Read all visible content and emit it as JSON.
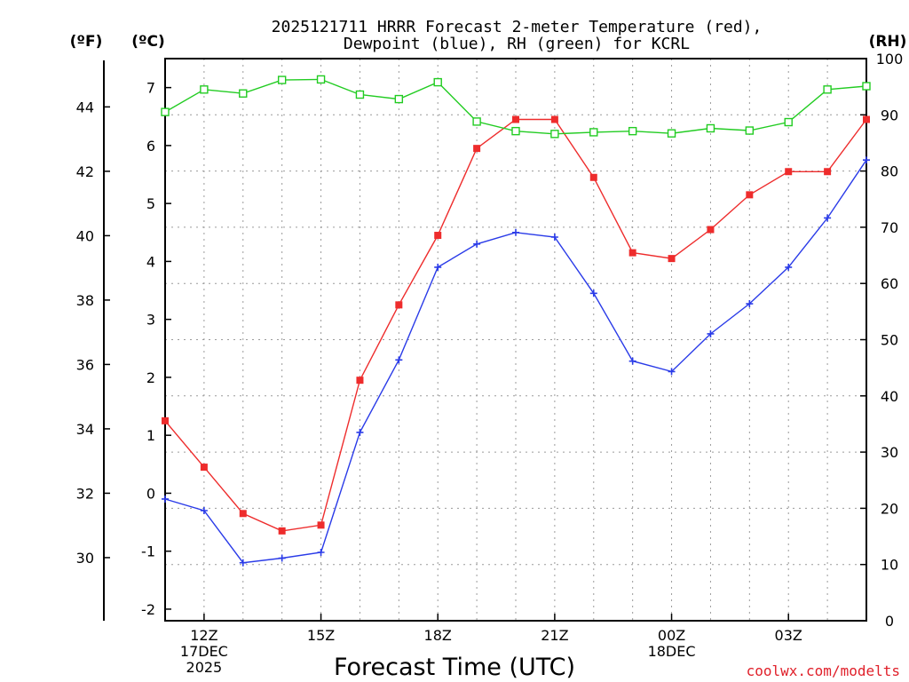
{
  "chart_data": {
    "type": "line",
    "title_lines": [
      "2025121711 HRRR Forecast 2-meter Temperature (red),",
      "Dewpoint (blue), RH (green) for KCRL"
    ],
    "xlabel": "Forecast Time (UTC)",
    "credit": "coolwx.com/modelts",
    "unit_labels": {
      "fahrenheit": "(ºF)",
      "celsius": "(ºC)",
      "rh": "(RH)"
    },
    "x_hours": [
      11,
      12,
      13,
      14,
      15,
      16,
      17,
      18,
      19,
      20,
      21,
      22,
      23,
      24,
      25,
      26,
      27,
      28,
      29
    ],
    "xlim": [
      11,
      29
    ],
    "x_ticks": [
      {
        "hour": 12,
        "lines": [
          "12Z",
          "17DEC",
          "2025"
        ]
      },
      {
        "hour": 15,
        "lines": [
          "15Z"
        ]
      },
      {
        "hour": 18,
        "lines": [
          "18Z"
        ]
      },
      {
        "hour": 21,
        "lines": [
          "21Z"
        ]
      },
      {
        "hour": 24,
        "lines": [
          "00Z",
          "18DEC"
        ]
      },
      {
        "hour": 27,
        "lines": [
          "03Z"
        ]
      }
    ],
    "celsius_axis": {
      "min": -2.2,
      "max": 7.5,
      "ticks": [
        "-2",
        "-1",
        "0",
        "1",
        "2",
        "3",
        "4",
        "5",
        "6",
        "7"
      ]
    },
    "fahrenheit_axis": {
      "ticks": [
        "30",
        "32",
        "34",
        "36",
        "38",
        "40",
        "42",
        "44"
      ]
    },
    "rh_axis": {
      "min": 0,
      "max": 100,
      "ticks": [
        "0",
        "10",
        "20",
        "30",
        "40",
        "50",
        "60",
        "70",
        "80",
        "90",
        "100"
      ]
    },
    "series": [
      {
        "name": "Temperature",
        "units": "C",
        "color": "#ee2c2c",
        "marker": "filled-square",
        "values": [
          1.25,
          0.45,
          -0.35,
          -0.65,
          -0.55,
          1.95,
          3.25,
          4.45,
          5.95,
          6.45,
          6.45,
          5.45,
          4.15,
          4.05,
          4.55,
          5.15,
          5.55,
          5.55,
          6.45
        ]
      },
      {
        "name": "Dewpoint",
        "units": "C",
        "color": "#2a3be8",
        "marker": "plus",
        "values": [
          -0.1,
          -0.3,
          -1.2,
          -1.12,
          -1.02,
          1.05,
          2.3,
          3.9,
          4.3,
          4.5,
          4.42,
          3.45,
          2.28,
          2.1,
          2.75,
          3.27,
          3.9,
          4.75,
          5.75
        ]
      },
      {
        "name": "Relative Humidity",
        "units": "%",
        "color": "#22cc22",
        "marker": "open-square",
        "values": [
          90.5,
          94.5,
          93.8,
          96.2,
          96.3,
          93.6,
          92.8,
          95.8,
          88.8,
          87.1,
          86.6,
          86.9,
          87.1,
          86.7,
          87.6,
          87.2,
          88.7,
          94.5,
          95.1
        ]
      }
    ]
  }
}
